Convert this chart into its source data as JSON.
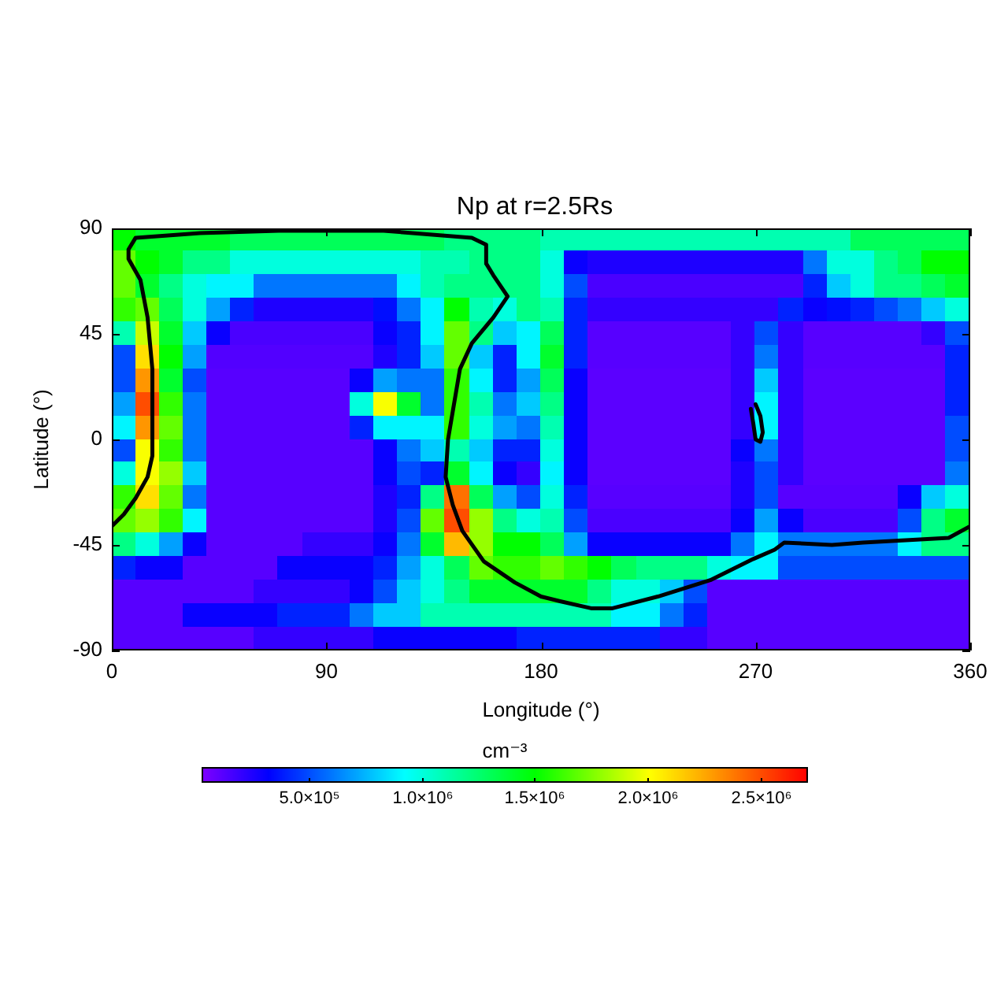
{
  "chart_data": {
    "type": "heatmap",
    "title": "Np at r=2.5Rs",
    "xlabel": "Longitude (°)",
    "ylabel": "Latitude (°)",
    "clabel": "cm⁻³",
    "xlim": [
      0,
      360
    ],
    "xticks": [
      0,
      90,
      180,
      270,
      360
    ],
    "ylim": [
      -90,
      90
    ],
    "yticks": [
      -90,
      -45,
      0,
      45,
      90
    ],
    "clim": [
      25000,
      2710000
    ],
    "cticks": [
      {
        "value": 500000,
        "label": "5.0×10⁵"
      },
      {
        "value": 1000000,
        "label": "1.0×10⁶"
      },
      {
        "value": 1500000,
        "label": "1.5×10⁶"
      },
      {
        "value": 2000000,
        "label": "2.0×10⁶"
      },
      {
        "value": 2500000,
        "label": "2.5×10⁶"
      }
    ],
    "cells": [
      [
        1500000.0,
        1400000.0,
        1400000.0,
        1400000.0,
        1400000.0,
        1300000.0,
        1300000.0,
        1300000.0,
        1300000.0,
        1300000.0,
        1300000.0,
        1300000.0,
        1300000.0,
        1300000.0,
        1200000.0,
        1200000.0,
        1200000.0,
        1200000.0,
        1100000.0,
        1100000.0,
        1100000.0,
        1100000.0,
        1100000.0,
        1100000.0,
        1100000.0,
        1100000.0,
        1100000.0,
        1100000.0,
        1100000.0,
        1100000.0,
        1100000.0,
        1300000.0,
        1300000.0,
        1300000.0,
        1300000.0,
        1300000.0
      ],
      [
        1700000.0,
        1500000.0,
        1400000.0,
        1200000.0,
        1200000.0,
        1000000.0,
        1000000.0,
        1000000.0,
        1000000.0,
        1000000.0,
        1000000.0,
        1000000.0,
        1000000.0,
        1100000.0,
        1100000.0,
        1200000.0,
        1200000.0,
        1200000.0,
        1000000.0,
        300000.0,
        250000.0,
        250000.0,
        250000.0,
        250000.0,
        250000.0,
        250000.0,
        250000.0,
        250000.0,
        250000.0,
        600000.0,
        1000000.0,
        1000000.0,
        1200000.0,
        1300000.0,
        1500000.0,
        1500000.0
      ],
      [
        1700000.0,
        1400000.0,
        1200000.0,
        1000000.0,
        900000.0,
        900000.0,
        600000.0,
        600000.0,
        600000.0,
        600000.0,
        600000.0,
        600000.0,
        900000.0,
        1100000.0,
        1200000.0,
        1200000.0,
        1200000.0,
        1200000.0,
        1000000.0,
        500000.0,
        150000.0,
        150000.0,
        150000.0,
        150000.0,
        150000.0,
        150000.0,
        150000.0,
        150000.0,
        150000.0,
        400000.0,
        800000.0,
        1000000.0,
        1200000.0,
        1200000.0,
        1300000.0,
        1400000.0
      ],
      [
        1600000.0,
        1700000.0,
        1300000.0,
        1000000.0,
        700000.0,
        400000.0,
        250000.0,
        250000.0,
        250000.0,
        250000.0,
        250000.0,
        350000.0,
        600000.0,
        900000.0,
        1500000.0,
        1100000.0,
        1000000.0,
        1200000.0,
        1100000.0,
        400000.0,
        200000.0,
        200000.0,
        200000.0,
        200000.0,
        200000.0,
        200000.0,
        200000.0,
        200000.0,
        400000.0,
        300000.0,
        350000.0,
        400000.0,
        500000.0,
        600000.0,
        800000.0,
        1000000.0
      ],
      [
        1100000.0,
        1900000.0,
        1400000.0,
        800000.0,
        300000.0,
        150000.0,
        150000.0,
        150000.0,
        150000.0,
        150000.0,
        150000.0,
        300000.0,
        400000.0,
        900000.0,
        1700000.0,
        1200000.0,
        800000.0,
        900000.0,
        1300000.0,
        400000.0,
        120000.0,
        120000.0,
        120000.0,
        120000.0,
        120000.0,
        120000.0,
        200000.0,
        500000.0,
        200000.0,
        120000.0,
        120000.0,
        120000.0,
        120000.0,
        120000.0,
        200000.0,
        500000.0
      ],
      [
        500000.0,
        2100000.0,
        1500000.0,
        700000.0,
        130000.0,
        130000.0,
        130000.0,
        130000.0,
        130000.0,
        130000.0,
        130000.0,
        250000.0,
        400000.0,
        800000.0,
        1700000.0,
        800000.0,
        400000.0,
        900000.0,
        1400000.0,
        400000.0,
        120000.0,
        120000.0,
        120000.0,
        120000.0,
        120000.0,
        120000.0,
        200000.0,
        600000.0,
        200000.0,
        120000.0,
        120000.0,
        120000.0,
        120000.0,
        120000.0,
        120000.0,
        400000.0
      ],
      [
        500000.0,
        2300000.0,
        1400000.0,
        500000.0,
        120000.0,
        120000.0,
        120000.0,
        120000.0,
        120000.0,
        120000.0,
        300000.0,
        700000.0,
        600000.0,
        600000.0,
        1600000.0,
        900000.0,
        400000.0,
        700000.0,
        1300000.0,
        300000.0,
        110000.0,
        110000.0,
        110000.0,
        110000.0,
        110000.0,
        110000.0,
        200000.0,
        800000.0,
        200000.0,
        110000.0,
        110000.0,
        110000.0,
        110000.0,
        110000.0,
        110000.0,
        400000.0
      ],
      [
        700000.0,
        2500000.0,
        1600000.0,
        600000.0,
        120000.0,
        120000.0,
        120000.0,
        120000.0,
        120000.0,
        120000.0,
        1000000.0,
        2000000.0,
        1400000.0,
        600000.0,
        1600000.0,
        1100000.0,
        600000.0,
        800000.0,
        1200000.0,
        300000.0,
        110000.0,
        110000.0,
        110000.0,
        110000.0,
        110000.0,
        110000.0,
        200000.0,
        900000.0,
        200000.0,
        110000.0,
        110000.0,
        110000.0,
        110000.0,
        110000.0,
        110000.0,
        400000.0
      ],
      [
        900000.0,
        2300000.0,
        1700000.0,
        600000.0,
        120000.0,
        120000.0,
        120000.0,
        120000.0,
        120000.0,
        120000.0,
        400000.0,
        900000.0,
        900000.0,
        900000.0,
        1600000.0,
        1000000.0,
        700000.0,
        600000.0,
        1100000.0,
        300000.0,
        110000.0,
        110000.0,
        110000.0,
        110000.0,
        110000.0,
        110000.0,
        200000.0,
        900000.0,
        200000.0,
        110000.0,
        110000.0,
        110000.0,
        110000.0,
        110000.0,
        110000.0,
        500000.0
      ],
      [
        500000.0,
        2000000.0,
        1600000.0,
        600000.0,
        120000.0,
        120000.0,
        120000.0,
        120000.0,
        120000.0,
        120000.0,
        120000.0,
        300000.0,
        600000.0,
        800000.0,
        1100000.0,
        800000.0,
        400000.0,
        400000.0,
        1000000.0,
        300000.0,
        110000.0,
        110000.0,
        110000.0,
        110000.0,
        110000.0,
        110000.0,
        300000.0,
        600000.0,
        200000.0,
        110000.0,
        110000.0,
        110000.0,
        110000.0,
        110000.0,
        110000.0,
        500000.0
      ],
      [
        1000000.0,
        2000000.0,
        1800000.0,
        800000.0,
        120000.0,
        120000.0,
        120000.0,
        120000.0,
        120000.0,
        120000.0,
        120000.0,
        300000.0,
        500000.0,
        400000.0,
        1400000.0,
        900000.0,
        300000.0,
        200000.0,
        900000.0,
        300000.0,
        110000.0,
        110000.0,
        110000.0,
        110000.0,
        110000.0,
        110000.0,
        250000.0,
        500000.0,
        200000.0,
        110000.0,
        110000.0,
        110000.0,
        110000.0,
        110000.0,
        110000.0,
        600000.0
      ],
      [
        1600000.0,
        2100000.0,
        1700000.0,
        600000.0,
        120000.0,
        120000.0,
        120000.0,
        120000.0,
        120000.0,
        120000.0,
        120000.0,
        250000.0,
        400000.0,
        1200000.0,
        2400000.0,
        1300000.0,
        700000.0,
        500000.0,
        1000000.0,
        400000.0,
        120000.0,
        120000.0,
        120000.0,
        120000.0,
        120000.0,
        120000.0,
        250000.0,
        500000.0,
        120000.0,
        120000.0,
        120000.0,
        120000.0,
        120000.0,
        300000.0,
        800000.0,
        1000000.0
      ],
      [
        1700000.0,
        1800000.0,
        1600000.0,
        900000.0,
        120000.0,
        120000.0,
        120000.0,
        120000.0,
        120000.0,
        120000.0,
        120000.0,
        250000.0,
        500000.0,
        1700000.0,
        2500000.0,
        1800000.0,
        1200000.0,
        1000000.0,
        1100000.0,
        500000.0,
        150000.0,
        150000.0,
        150000.0,
        150000.0,
        150000.0,
        150000.0,
        300000.0,
        700000.0,
        300000.0,
        150000.0,
        150000.0,
        150000.0,
        150000.0,
        500000.0,
        1200000.0,
        1400000.0
      ],
      [
        1200000.0,
        1000000.0,
        700000.0,
        300000.0,
        120000.0,
        120000.0,
        120000.0,
        120000.0,
        200000.0,
        200000.0,
        200000.0,
        300000.0,
        600000.0,
        1400000.0,
        2200000.0,
        1800000.0,
        1500000.0,
        1500000.0,
        1300000.0,
        700000.0,
        300000.0,
        300000.0,
        300000.0,
        300000.0,
        300000.0,
        300000.0,
        600000.0,
        900000.0,
        600000.0,
        600000.0,
        600000.0,
        600000.0,
        600000.0,
        900000.0,
        1200000.0,
        1200000.0
      ],
      [
        400000.0,
        300000.0,
        300000.0,
        120000.0,
        120000.0,
        120000.0,
        120000.0,
        300000.0,
        300000.0,
        300000.0,
        300000.0,
        400000.0,
        700000.0,
        1000000.0,
        1300000.0,
        1700000.0,
        1600000.0,
        1600000.0,
        1700000.0,
        1600000.0,
        1500000.0,
        1300000.0,
        1200000.0,
        1200000.0,
        1200000.0,
        1000000.0,
        900000.0,
        900000.0,
        500000.0,
        500000.0,
        500000.0,
        500000.0,
        500000.0,
        500000.0,
        500000.0,
        500000.0
      ],
      [
        120000.0,
        120000.0,
        120000.0,
        120000.0,
        120000.0,
        120000.0,
        200000.0,
        200000.0,
        200000.0,
        200000.0,
        300000.0,
        500000.0,
        800000.0,
        1000000.0,
        1200000.0,
        1400000.0,
        1400000.0,
        1400000.0,
        1400000.0,
        1400000.0,
        1200000.0,
        1000000.0,
        1000000.0,
        800000.0,
        500000.0,
        120000.0,
        120000.0,
        120000.0,
        120000.0,
        120000.0,
        120000.0,
        120000.0,
        120000.0,
        120000.0,
        120000.0,
        120000.0
      ],
      [
        120000.0,
        120000.0,
        120000.0,
        300000.0,
        300000.0,
        300000.0,
        300000.0,
        400000.0,
        400000.0,
        400000.0,
        600000.0,
        800000.0,
        800000.0,
        1100000.0,
        1100000.0,
        1100000.0,
        1100000.0,
        1100000.0,
        1100000.0,
        1100000.0,
        1100000.0,
        900000.0,
        900000.0,
        600000.0,
        400000.0,
        120000.0,
        120000.0,
        120000.0,
        120000.0,
        120000.0,
        120000.0,
        120000.0,
        120000.0,
        120000.0,
        120000.0,
        120000.0
      ],
      [
        120000.0,
        120000.0,
        120000.0,
        120000.0,
        120000.0,
        120000.0,
        200000.0,
        200000.0,
        200000.0,
        200000.0,
        200000.0,
        300000.0,
        300000.0,
        300000.0,
        300000.0,
        300000.0,
        300000.0,
        400000.0,
        400000.0,
        400000.0,
        400000.0,
        400000.0,
        400000.0,
        200000.0,
        200000.0,
        120000.0,
        120000.0,
        120000.0,
        120000.0,
        120000.0,
        120000.0,
        120000.0,
        120000.0,
        120000.0,
        120000.0,
        120000.0
      ]
    ],
    "series": [
      {
        "type": "line",
        "color": "#000000",
        "x": [
          0,
          5,
          10,
          15,
          17,
          17,
          15,
          12,
          7,
          7,
          10,
          37,
          70,
          114,
          151,
          157,
          157,
          160,
          166,
          160,
          151,
          146,
          143,
          141,
          140,
          143,
          147,
          156,
          169,
          180,
          188,
          201,
          210,
          229,
          251,
          269,
          278,
          282,
          302,
          315,
          333,
          351,
          360
        ],
        "values": [
          -37,
          -32,
          -25,
          -16,
          -7,
          30,
          52,
          68,
          77,
          81,
          86,
          88,
          89,
          89,
          86,
          83,
          75,
          70,
          61,
          52,
          41,
          30,
          12,
          0,
          -16,
          -28,
          -39,
          -52,
          -61,
          -67,
          -69,
          -72,
          -72,
          -67,
          -60,
          -51,
          -47,
          -44,
          -45,
          -44,
          -43,
          -42,
          -37
        ]
      },
      {
        "type": "line",
        "color": "#000000",
        "x": [
          270,
          272,
          273,
          272,
          270,
          269,
          268
        ],
        "values": [
          15,
          10,
          3,
          -1,
          0,
          7,
          13
        ]
      }
    ]
  }
}
